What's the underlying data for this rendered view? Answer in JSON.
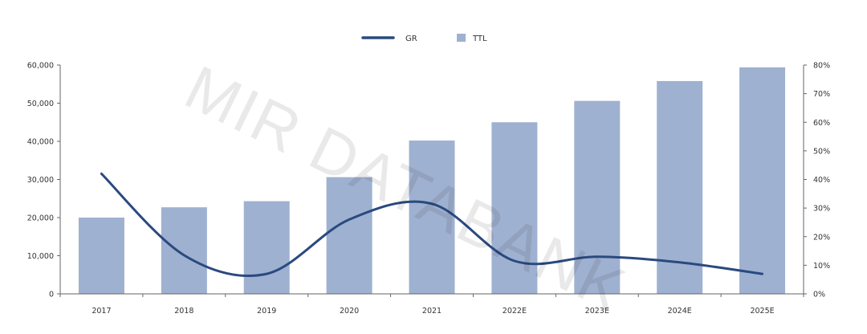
{
  "chart_data": {
    "type": "bar",
    "categories": [
      "2017",
      "2018",
      "2019",
      "2020",
      "2021",
      "2022E",
      "2023E",
      "2024E",
      "2025E"
    ],
    "series": [
      {
        "name": "TTL",
        "type": "bar",
        "axis": "left",
        "color": "#9FB1D0",
        "values": [
          20000,
          22700,
          24300,
          30600,
          40200,
          45000,
          50600,
          55800,
          59400
        ]
      },
      {
        "name": "GR",
        "type": "line",
        "axis": "right",
        "color": "#2A4A7F",
        "values": [
          0.42,
          0.135,
          0.07,
          0.26,
          0.315,
          0.115,
          0.13,
          0.11,
          0.07
        ]
      }
    ],
    "ylim_left": [
      0,
      60000
    ],
    "yticks_left": [
      "0",
      "10,000",
      "20,000",
      "30,000",
      "40,000",
      "50,000",
      "60,000"
    ],
    "ylim_right": [
      0,
      0.8
    ],
    "yticks_right": [
      "0%",
      "10%",
      "20%",
      "30%",
      "40%",
      "50%",
      "60%",
      "70%",
      "80%"
    ],
    "legend_position": "top-center",
    "grid": false,
    "title": "",
    "xlabel": "",
    "ylabel": ""
  },
  "legend": {
    "gr_label": "GR",
    "ttl_label": "TTL"
  },
  "watermark": "MIR DATABANK"
}
